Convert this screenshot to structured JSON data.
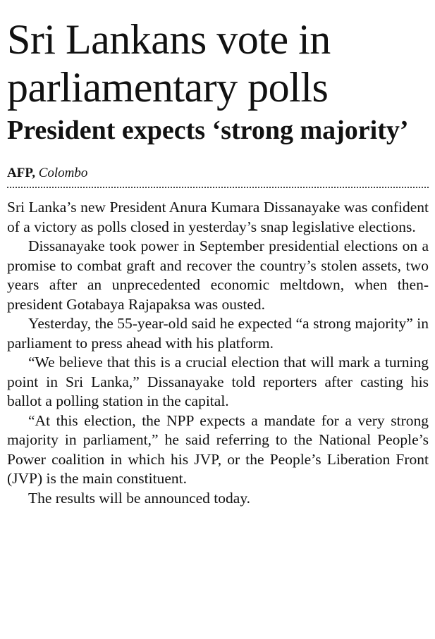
{
  "article": {
    "headline": "Sri Lankans vote in parliamentary polls",
    "subheadline": "President expects ‘strong majority’",
    "byline": {
      "agency": "AFP,",
      "location": "Colombo"
    },
    "paragraphs": [
      "Sri Lanka’s new President Anura Kumara Dissanayake was confident of a victory as polls closed in yesterday’s snap legislative elections.",
      "Dissanayake took power in September presidential elections on a promise to combat graft and recover the country’s stolen assets, two years after an unprecedented economic meltdown, when then-president Gotabaya Rajapaksa was ousted.",
      "Yesterday, the 55-year-old said he expected “a strong majority” in parliament to press ahead with his platform.",
      "“We believe that this is a crucial election that will mark a turning point in Sri Lanka,” Dissanayake told reporters after casting his ballot a polling station in the capital.",
      "“At this election, the NPP expects a mandate for a very strong majority in parliament,” he said referring to the National People’s Power coalition in which his JVP, or the People’s Liberation Front (JVP) is the main constituent.",
      "The results will be announced today."
    ]
  }
}
